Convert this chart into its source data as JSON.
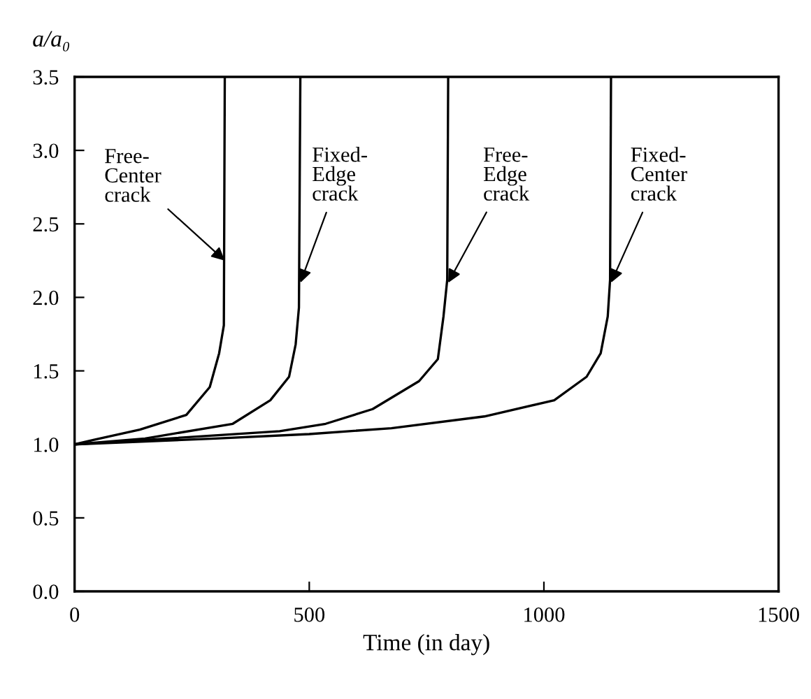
{
  "chart_data": {
    "type": "line",
    "xlabel": "Time (in day)",
    "ylabel": "a/a₀",
    "xlim": [
      0,
      1500
    ],
    "ylim": [
      0,
      3.5
    ],
    "xticks": [
      0,
      500,
      1000,
      1500
    ],
    "yticks": [
      {
        "value": 0,
        "label": "0.0"
      },
      {
        "value": 0.5,
        "label": "0.5"
      },
      {
        "value": 1,
        "label": "1.0"
      },
      {
        "value": 1.5,
        "label": "1.5"
      },
      {
        "value": 2,
        "label": "2.0"
      },
      {
        "value": 2.5,
        "label": "2.5"
      },
      {
        "value": 3,
        "label": "3.0"
      },
      {
        "value": 3.5,
        "label": "3.5"
      }
    ],
    "grid": false,
    "legend": false,
    "marker": "none",
    "line_style": "solid",
    "series": [
      {
        "color": "#000000",
        "x": [
          0,
          40,
          139,
          238,
          288,
          308,
          318,
          320
        ],
        "values": [
          1.0,
          1.03,
          1.1,
          1.2,
          1.39,
          1.62,
          1.81,
          3.5
        ]
      },
      {
        "color": "#000000",
        "x": [
          0,
          150,
          337,
          417,
          457,
          471,
          478,
          481
        ],
        "values": [
          1.0,
          1.04,
          1.14,
          1.3,
          1.46,
          1.68,
          1.93,
          3.5
        ]
      },
      {
        "color": "#000000",
        "x": [
          0,
          200,
          437,
          535,
          635,
          734,
          774,
          786,
          794,
          796
        ],
        "values": [
          1.0,
          1.04,
          1.09,
          1.14,
          1.24,
          1.43,
          1.58,
          1.87,
          2.12,
          3.5
        ]
      },
      {
        "color": "#000000",
        "x": [
          0,
          300,
          500,
          675,
          873,
          1022,
          1091,
          1121,
          1136,
          1141,
          1143
        ],
        "values": [
          1.0,
          1.04,
          1.07,
          1.11,
          1.19,
          1.3,
          1.46,
          1.62,
          1.87,
          2.12,
          3.5
        ]
      }
    ],
    "annotations": [
      {
        "text": "Free-\nCenter\ncrack",
        "x": 320,
        "y": 2.25
      },
      {
        "text": "Fixed-\nEdge\ncrack",
        "x": 481,
        "y": 2.1
      },
      {
        "text": "Free-\nEdge\ncrack",
        "x": 796,
        "y": 2.1
      },
      {
        "text": "Fixed-\nCenter\ncrack",
        "x": 1143,
        "y": 2.1
      }
    ]
  }
}
